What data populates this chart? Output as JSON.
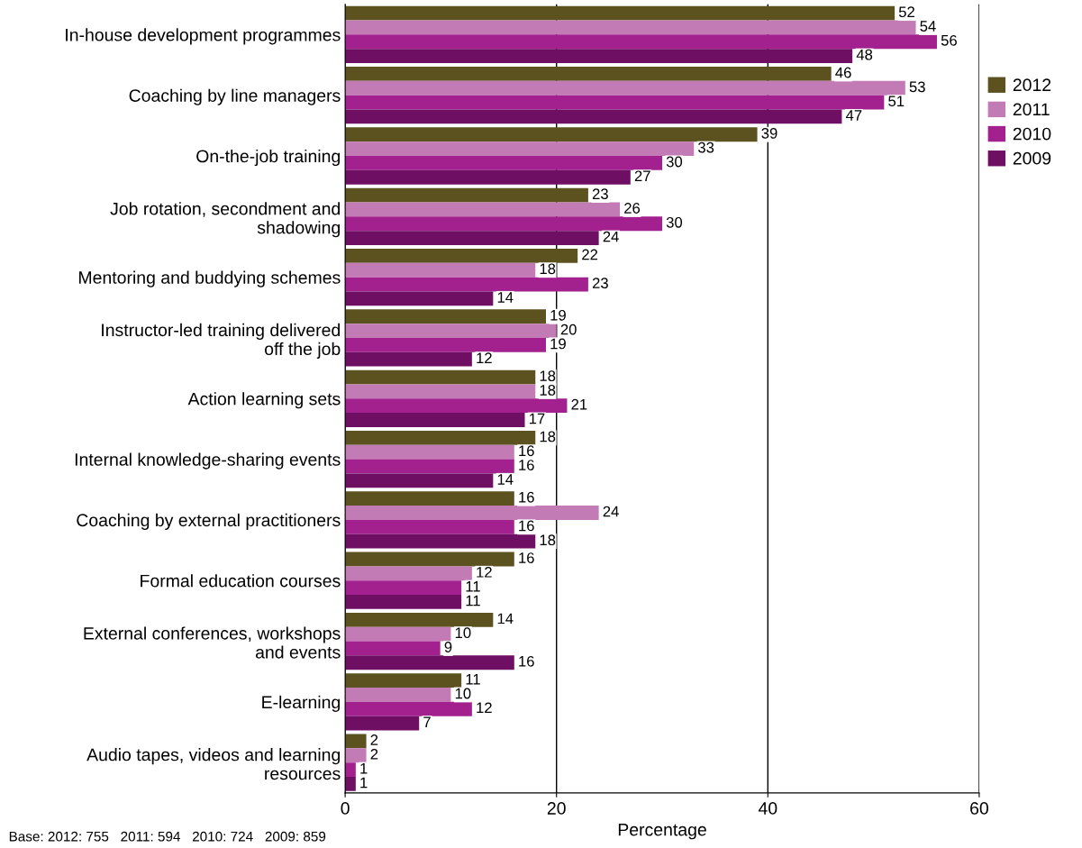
{
  "chart_data": {
    "type": "bar",
    "orientation": "horizontal",
    "categories": [
      "In-house development programmes",
      "Coaching by line managers",
      "On-the-job training",
      "Job rotation, secondment and\nshadowing",
      "Mentoring and buddying schemes",
      "Instructor-led training delivered\noff the job",
      "Action learning sets",
      "Internal knowledge-sharing events",
      "Coaching by external practitioners",
      "Formal education courses",
      "External conferences, workshops\nand events",
      "E-learning",
      "Audio tapes, videos and learning\nresources"
    ],
    "series": [
      {
        "name": "2012",
        "color": "#5c5220",
        "values": [
          52,
          46,
          39,
          23,
          22,
          19,
          18,
          18,
          16,
          16,
          14,
          11,
          2
        ]
      },
      {
        "name": "2011",
        "color": "#c27bb5",
        "values": [
          54,
          53,
          33,
          26,
          18,
          20,
          18,
          16,
          24,
          12,
          10,
          10,
          2
        ]
      },
      {
        "name": "2010",
        "color": "#a3218f",
        "values": [
          56,
          51,
          30,
          30,
          23,
          19,
          21,
          16,
          16,
          11,
          9,
          12,
          1
        ]
      },
      {
        "name": "2009",
        "color": "#6e0f64",
        "values": [
          48,
          47,
          27,
          24,
          14,
          12,
          17,
          14,
          18,
          11,
          16,
          7,
          1
        ]
      }
    ],
    "xlim": [
      0,
      60
    ],
    "xticks": [
      0,
      20,
      40,
      60
    ],
    "xlabel": "Percentage",
    "grid": "x",
    "legend": "right",
    "data_labels": true,
    "annotations": [
      "Base: 2012: 755   2011: 594   2010: 724   2009: 859"
    ]
  }
}
